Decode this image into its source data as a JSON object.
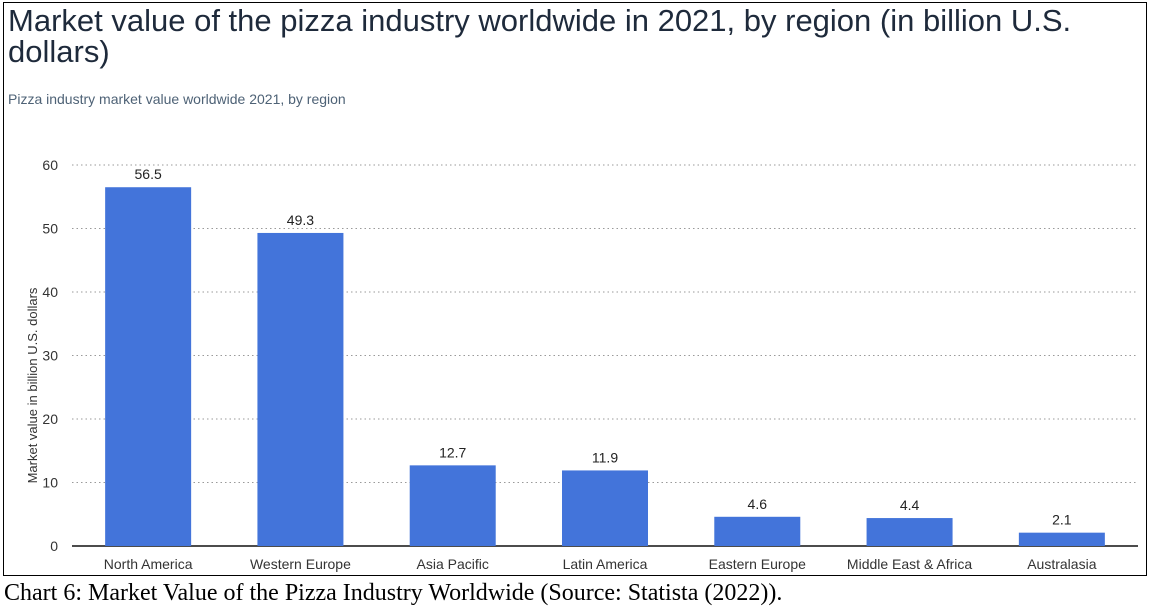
{
  "chart_data": {
    "type": "bar",
    "title": "Market value of the pizza industry worldwide in 2021, by region (in billion U.S. dollars)",
    "subtitle": "Pizza industry market value worldwide 2021, by region",
    "ylabel": "Market value in billion U.S. dollars",
    "xlabel": "",
    "categories": [
      "North America",
      "Western Europe",
      "Asia Pacific",
      "Latin America",
      "Eastern Europe",
      "Middle East & Africa",
      "Australasia"
    ],
    "values": [
      56.5,
      49.3,
      12.7,
      11.9,
      4.6,
      4.4,
      2.1
    ],
    "value_labels": [
      "56.5",
      "49.3",
      "12.7",
      "11.9",
      "4.6",
      "4.4",
      "2.1"
    ],
    "ylim": [
      0,
      60
    ],
    "yticks": [
      0,
      10,
      20,
      30,
      40,
      50,
      60
    ],
    "grid": true,
    "bar_color": "#4374da"
  },
  "caption": "Chart 6: Market Value of the Pizza Industry Worldwide (Source: Statista (2022))."
}
